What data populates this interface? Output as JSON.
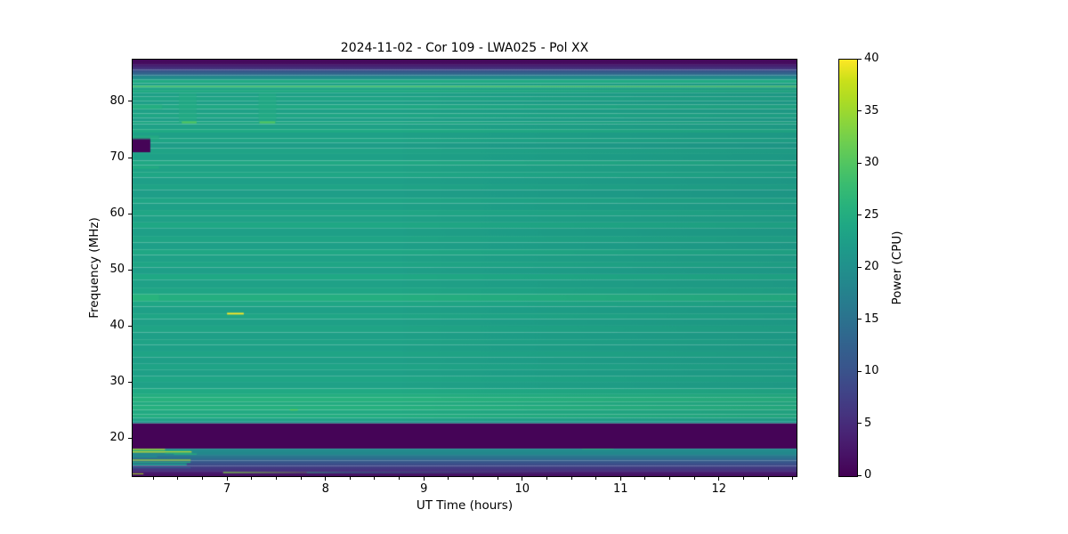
{
  "chart_data": {
    "type": "heatmap",
    "title": "2024-11-02 - Cor 109 - LWA025 - Pol XX",
    "xlabel": "UT Time (hours)",
    "ylabel": "Frequency (MHz)",
    "colormap": "viridis",
    "x_range": [
      6.03,
      12.78
    ],
    "y_range": [
      13.4,
      87.6
    ],
    "value_range": [
      0,
      40
    ],
    "xticks": [
      7,
      8,
      9,
      10,
      11,
      12
    ],
    "xminor_step": 0.25,
    "yticks": [
      20,
      30,
      40,
      50,
      60,
      70,
      80
    ],
    "grid": false,
    "colorbar": {
      "label": "Power (CPU)",
      "ticks": [
        0,
        5,
        10,
        15,
        20,
        25,
        30,
        35,
        40
      ],
      "vmin": 0,
      "vmax": 40,
      "position": "right"
    },
    "bands_comment": "Horizontal frequency bands [freq_top_MHz, freq_bottom_MHz, power_top, power_bottom(optional)] in CPU power units, spanning full time range",
    "bands": [
      [
        87.6,
        86.8,
        0.8,
        1.5
      ],
      [
        86.8,
        85.8,
        2.5,
        7
      ],
      [
        85.8,
        84.8,
        9,
        15
      ],
      [
        84.8,
        84.0,
        17,
        21.5
      ],
      [
        84.0,
        83.4,
        24.5
      ],
      [
        83.4,
        82.95,
        23
      ],
      [
        82.95,
        82.65,
        28.5
      ],
      [
        82.65,
        82.2,
        23.5
      ],
      [
        82.2,
        81.7,
        24.5
      ],
      [
        81.7,
        81.0,
        22.8
      ],
      [
        81.0,
        80.2,
        23.5
      ],
      [
        80.2,
        79.6,
        22.6
      ],
      [
        79.6,
        78.8,
        24.2
      ],
      [
        78.8,
        78.0,
        23.0
      ],
      [
        78.0,
        77.2,
        23.8
      ],
      [
        77.2,
        76.6,
        22.6
      ],
      [
        76.6,
        76.1,
        24.0
      ],
      [
        76.1,
        75.2,
        23.0
      ],
      [
        75.2,
        74.6,
        24.3
      ],
      [
        74.6,
        73.6,
        22.8
      ],
      [
        73.6,
        72.8,
        23.6
      ],
      [
        72.8,
        71.8,
        22.4
      ],
      [
        71.8,
        70.8,
        23.4
      ],
      [
        70.8,
        69.6,
        22.8
      ],
      [
        69.6,
        68.8,
        24.2
      ],
      [
        68.8,
        67.6,
        23.2
      ],
      [
        67.6,
        66.6,
        23.8
      ],
      [
        66.6,
        65.4,
        22.6
      ],
      [
        65.4,
        64.4,
        23.4
      ],
      [
        64.4,
        63.0,
        22.5
      ],
      [
        63.0,
        62.0,
        23.6
      ],
      [
        62.0,
        60.8,
        22.8
      ],
      [
        60.8,
        59.8,
        23.8
      ],
      [
        59.8,
        58.6,
        23.0
      ],
      [
        58.6,
        57.6,
        24.0
      ],
      [
        57.6,
        56.2,
        22.7
      ],
      [
        56.2,
        55.0,
        23.5
      ],
      [
        55.0,
        53.8,
        22.6
      ],
      [
        53.8,
        52.8,
        24.0
      ],
      [
        52.8,
        51.6,
        23.0
      ],
      [
        51.6,
        50.6,
        23.6
      ],
      [
        50.6,
        49.4,
        22.6
      ],
      [
        49.4,
        48.4,
        24.1
      ],
      [
        48.4,
        47.0,
        23.0
      ],
      [
        47.0,
        45.8,
        23.6
      ],
      [
        45.8,
        44.6,
        25.2
      ],
      [
        44.6,
        43.6,
        23.8
      ],
      [
        43.6,
        42.4,
        22.8
      ],
      [
        42.4,
        41.4,
        23.6
      ],
      [
        41.4,
        40.2,
        22.9
      ],
      [
        40.2,
        39.0,
        23.5
      ],
      [
        39.0,
        37.8,
        22.7
      ],
      [
        37.8,
        36.8,
        23.4
      ],
      [
        36.8,
        35.6,
        22.8
      ],
      [
        35.6,
        34.6,
        23.5
      ],
      [
        34.6,
        33.4,
        22.7
      ],
      [
        33.4,
        32.4,
        23.3
      ],
      [
        32.4,
        31.2,
        22.8
      ],
      [
        31.2,
        30.2,
        23.6
      ],
      [
        30.2,
        29.0,
        23.0
      ],
      [
        29.0,
        28.0,
        24.3
      ],
      [
        28.0,
        27.4,
        25.2
      ],
      [
        27.4,
        26.6,
        25.8
      ],
      [
        26.6,
        26.0,
        24.8
      ],
      [
        26.0,
        25.2,
        25.6
      ],
      [
        25.2,
        24.4,
        24.6
      ],
      [
        24.4,
        23.8,
        25.2
      ],
      [
        23.8,
        23.2,
        23.4
      ],
      [
        23.2,
        22.8,
        21.0
      ],
      [
        22.8,
        18.3,
        0.4
      ],
      [
        18.3,
        17.2,
        19.5,
        18.5
      ],
      [
        17.2,
        16.2,
        17,
        13
      ],
      [
        16.2,
        15.2,
        12,
        8.5
      ],
      [
        15.2,
        14.2,
        8,
        5
      ],
      [
        14.2,
        13.4,
        4,
        1.2
      ]
    ],
    "features_comment": "Localized events {t0,t1 hours UT; f0,f1 MHz; v power; alpha opacity; fade direction}",
    "features": [
      {
        "name": "dropout-block-72MHz",
        "t0": 6.03,
        "t1": 6.21,
        "f0": 73.6,
        "f1": 71.1,
        "v": 0.4
      },
      {
        "name": "bright-column-1",
        "t0": 6.5,
        "t1": 6.68,
        "f0": 81.6,
        "f1": 76.4,
        "v": 24.8,
        "alpha": 0.55
      },
      {
        "name": "bright-column-2",
        "t0": 7.31,
        "t1": 7.49,
        "f0": 81.6,
        "f1": 76.4,
        "v": 24.8,
        "alpha": 0.55
      },
      {
        "name": "bright-line-76MHz-1",
        "t0": 6.53,
        "t1": 6.68,
        "f0": 76.6,
        "f1": 76.25,
        "v": 30
      },
      {
        "name": "bright-line-76MHz-2",
        "t0": 7.32,
        "t1": 7.48,
        "f0": 76.6,
        "f1": 76.25,
        "v": 30
      },
      {
        "name": "yellow-burst-42MHz",
        "t0": 6.99,
        "t1": 7.16,
        "f0": 42.5,
        "f1": 42.2,
        "v": 40
      },
      {
        "name": "small-dash-25MHz",
        "t0": 7.63,
        "t1": 7.71,
        "f0": 25.3,
        "f1": 25.1,
        "v": 32,
        "alpha": 0.8
      },
      {
        "name": "left-bright-79MHz",
        "t0": 6.03,
        "t1": 6.33,
        "f0": 79.6,
        "f1": 78.8,
        "v": 25.6,
        "alpha": 0.6
      },
      {
        "name": "left-bright-73MHz",
        "t0": 6.03,
        "t1": 6.3,
        "f0": 74.1,
        "f1": 73.4,
        "v": 25.2,
        "alpha": 0.6
      },
      {
        "name": "left-bright-68MHz",
        "t0": 6.03,
        "t1": 6.3,
        "f0": 68.7,
        "f1": 68.1,
        "v": 25.4,
        "alpha": 0.6
      },
      {
        "name": "left-bright-45MHz",
        "t0": 6.03,
        "t1": 6.3,
        "f0": 45.8,
        "f1": 44.6,
        "v": 26.5,
        "alpha": 0.6
      },
      {
        "name": "rfi-streak-18.2MHz",
        "t0": 6.03,
        "t1": 6.36,
        "f0": 18.25,
        "f1": 18.05,
        "v": 37
      },
      {
        "name": "rfi-streak-18.0MHz",
        "t0": 6.03,
        "t1": 6.62,
        "f0": 18.02,
        "f1": 17.88,
        "v": 25
      },
      {
        "name": "rfi-streak-17.7MHz",
        "t0": 6.03,
        "t1": 6.63,
        "f0": 17.8,
        "f1": 17.62,
        "v": 39
      },
      {
        "name": "rfi-streak-17.5MHz",
        "t0": 6.36,
        "t1": 6.63,
        "f0": 17.6,
        "f1": 17.45,
        "v": 27
      },
      {
        "name": "rfi-streak-17.3MHz",
        "t0": 6.45,
        "t1": 6.68,
        "f0": 17.42,
        "f1": 17.25,
        "v": 26
      },
      {
        "name": "rfi-streak-16.9MHz",
        "t0": 6.03,
        "t1": 6.28,
        "f0": 16.95,
        "f1": 16.8,
        "v": 22
      },
      {
        "name": "rfi-streak-16.3MHz",
        "t0": 6.03,
        "t1": 6.62,
        "f0": 16.35,
        "f1": 16.18,
        "v": 36
      },
      {
        "name": "rfi-streak-15.9MHz",
        "t0": 6.03,
        "t1": 6.62,
        "f0": 16.0,
        "f1": 15.8,
        "v": 25
      },
      {
        "name": "rfi-patch-15.5MHz",
        "t0": 6.03,
        "t1": 6.58,
        "f0": 15.7,
        "f1": 15.3,
        "v": 20
      },
      {
        "name": "rfi-streak-14.9MHz",
        "t0": 6.03,
        "t1": 6.62,
        "f0": 15.0,
        "f1": 14.85,
        "v": 12
      },
      {
        "name": "rfi-dash-13.8MHz",
        "t0": 6.03,
        "t1": 6.14,
        "f0": 13.9,
        "f1": 13.75,
        "v": 36
      },
      {
        "name": "long-line-14MHz-bright",
        "t0": 6.95,
        "t1": 8.2,
        "f0": 14.15,
        "f1": 13.95,
        "v": 33,
        "fade": "right"
      },
      {
        "name": "long-line-14MHz-faint",
        "t0": 7.8,
        "t1": 10.5,
        "f0": 14.12,
        "f1": 13.97,
        "v": 19,
        "fade": "right",
        "alpha": 0.9
      },
      {
        "name": "tinge-18MHz-10.7h",
        "t0": 10.6,
        "t1": 10.92,
        "f0": 18.3,
        "f1": 18.14,
        "v": 27,
        "alpha": 0.7
      }
    ]
  }
}
